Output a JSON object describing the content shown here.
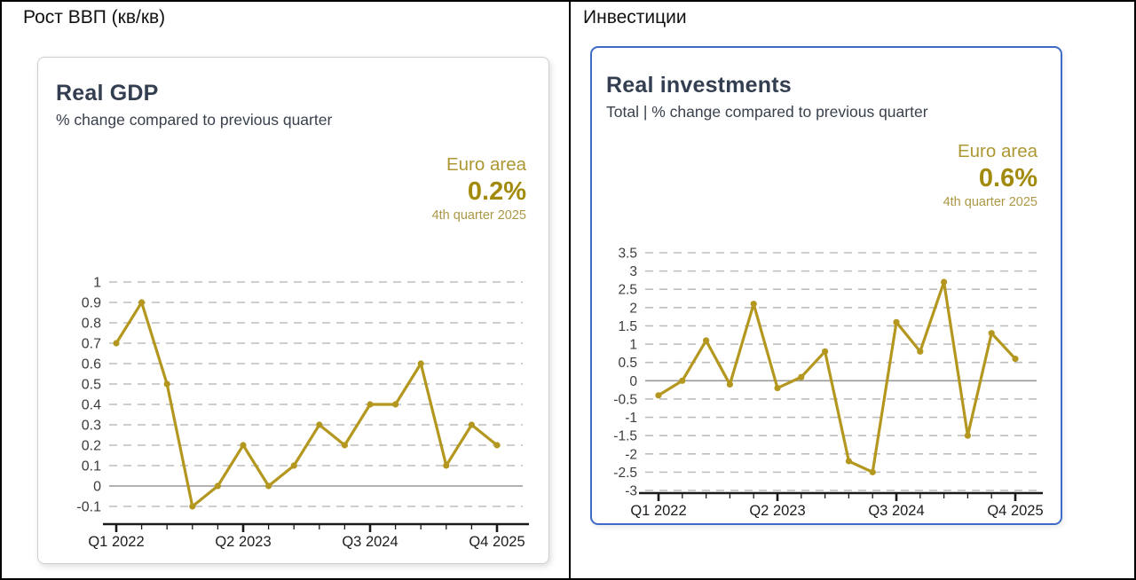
{
  "panels": [
    {
      "header": "Рост ВВП (кв/кв)",
      "selected": false
    },
    {
      "header": "Инвестиции",
      "selected": true
    }
  ],
  "colors": {
    "line_gold": "#b4971f",
    "highlight_gold": "#a18a0c",
    "title_slate": "#333f50",
    "selected_card_border": "#3d6bc5",
    "gridline_gray": "#bdbdbd",
    "zero_line_gray": "#999999",
    "axis_black": "#1a1a1a"
  },
  "chart_data": [
    {
      "type": "line",
      "title": "Real GDP",
      "subtitle": "% change compared to previous quarter",
      "x": [
        "Q1 2022",
        "Q2 2022",
        "Q3 2022",
        "Q4 2022",
        "Q1 2023",
        "Q2 2023",
        "Q3 2023",
        "Q4 2023",
        "Q1 2024",
        "Q2 2024",
        "Q3 2024",
        "Q4 2024",
        "Q1 2025",
        "Q2 2025",
        "Q3 2025",
        "Q4 2025"
      ],
      "series": [
        {
          "name": "Euro area",
          "values": [
            0.7,
            0.9,
            0.5,
            -0.1,
            0.0,
            0.2,
            0.0,
            0.1,
            0.3,
            0.2,
            0.4,
            0.4,
            0.6,
            0.1,
            0.3,
            0.2
          ]
        }
      ],
      "x_axis_labels": [
        {
          "index": 0,
          "label": "Q1 2022"
        },
        {
          "index": 5,
          "label": "Q2 2023"
        },
        {
          "index": 10,
          "label": "Q3 2024"
        },
        {
          "index": 15,
          "label": "Q4 2025"
        }
      ],
      "yticks": [
        1,
        0.9,
        0.8,
        0.7,
        0.6,
        0.5,
        0.4,
        0.3,
        0.2,
        0.1,
        0,
        -0.1
      ],
      "ylim": [
        -0.1,
        1
      ],
      "grid": "horizontal-dashed, solid line at 0",
      "legend_position": "none",
      "latest": {
        "label": "Euro area",
        "value": "0.2%",
        "period": "4th quarter 2025"
      }
    },
    {
      "type": "line",
      "title": "Real investments",
      "subtitle": "Total | % change compared to previous quarter",
      "x": [
        "Q1 2022",
        "Q2 2022",
        "Q3 2022",
        "Q4 2022",
        "Q1 2023",
        "Q2 2023",
        "Q3 2023",
        "Q4 2023",
        "Q1 2024",
        "Q2 2024",
        "Q3 2024",
        "Q4 2024",
        "Q1 2025",
        "Q2 2025",
        "Q3 2025",
        "Q4 2025"
      ],
      "series": [
        {
          "name": "Euro area",
          "values": [
            -0.4,
            0.0,
            1.1,
            -0.1,
            2.1,
            -0.2,
            0.1,
            0.8,
            -2.2,
            -2.5,
            1.6,
            0.8,
            2.7,
            -1.5,
            1.3,
            0.6
          ]
        }
      ],
      "x_axis_labels": [
        {
          "index": 0,
          "label": "Q1 2022"
        },
        {
          "index": 5,
          "label": "Q2 2023"
        },
        {
          "index": 10,
          "label": "Q3 2024"
        },
        {
          "index": 15,
          "label": "Q4 2025"
        }
      ],
      "yticks": [
        3.5,
        3,
        2.5,
        2,
        1.5,
        1,
        0.5,
        0,
        -0.5,
        -1,
        -1.5,
        -2,
        -2.5,
        -3
      ],
      "ylim": [
        -3,
        3.5
      ],
      "grid": "horizontal-dashed, solid line at 0",
      "legend_position": "none",
      "latest": {
        "label": "Euro area",
        "value": "0.6%",
        "period": "4th quarter 2025"
      }
    }
  ]
}
